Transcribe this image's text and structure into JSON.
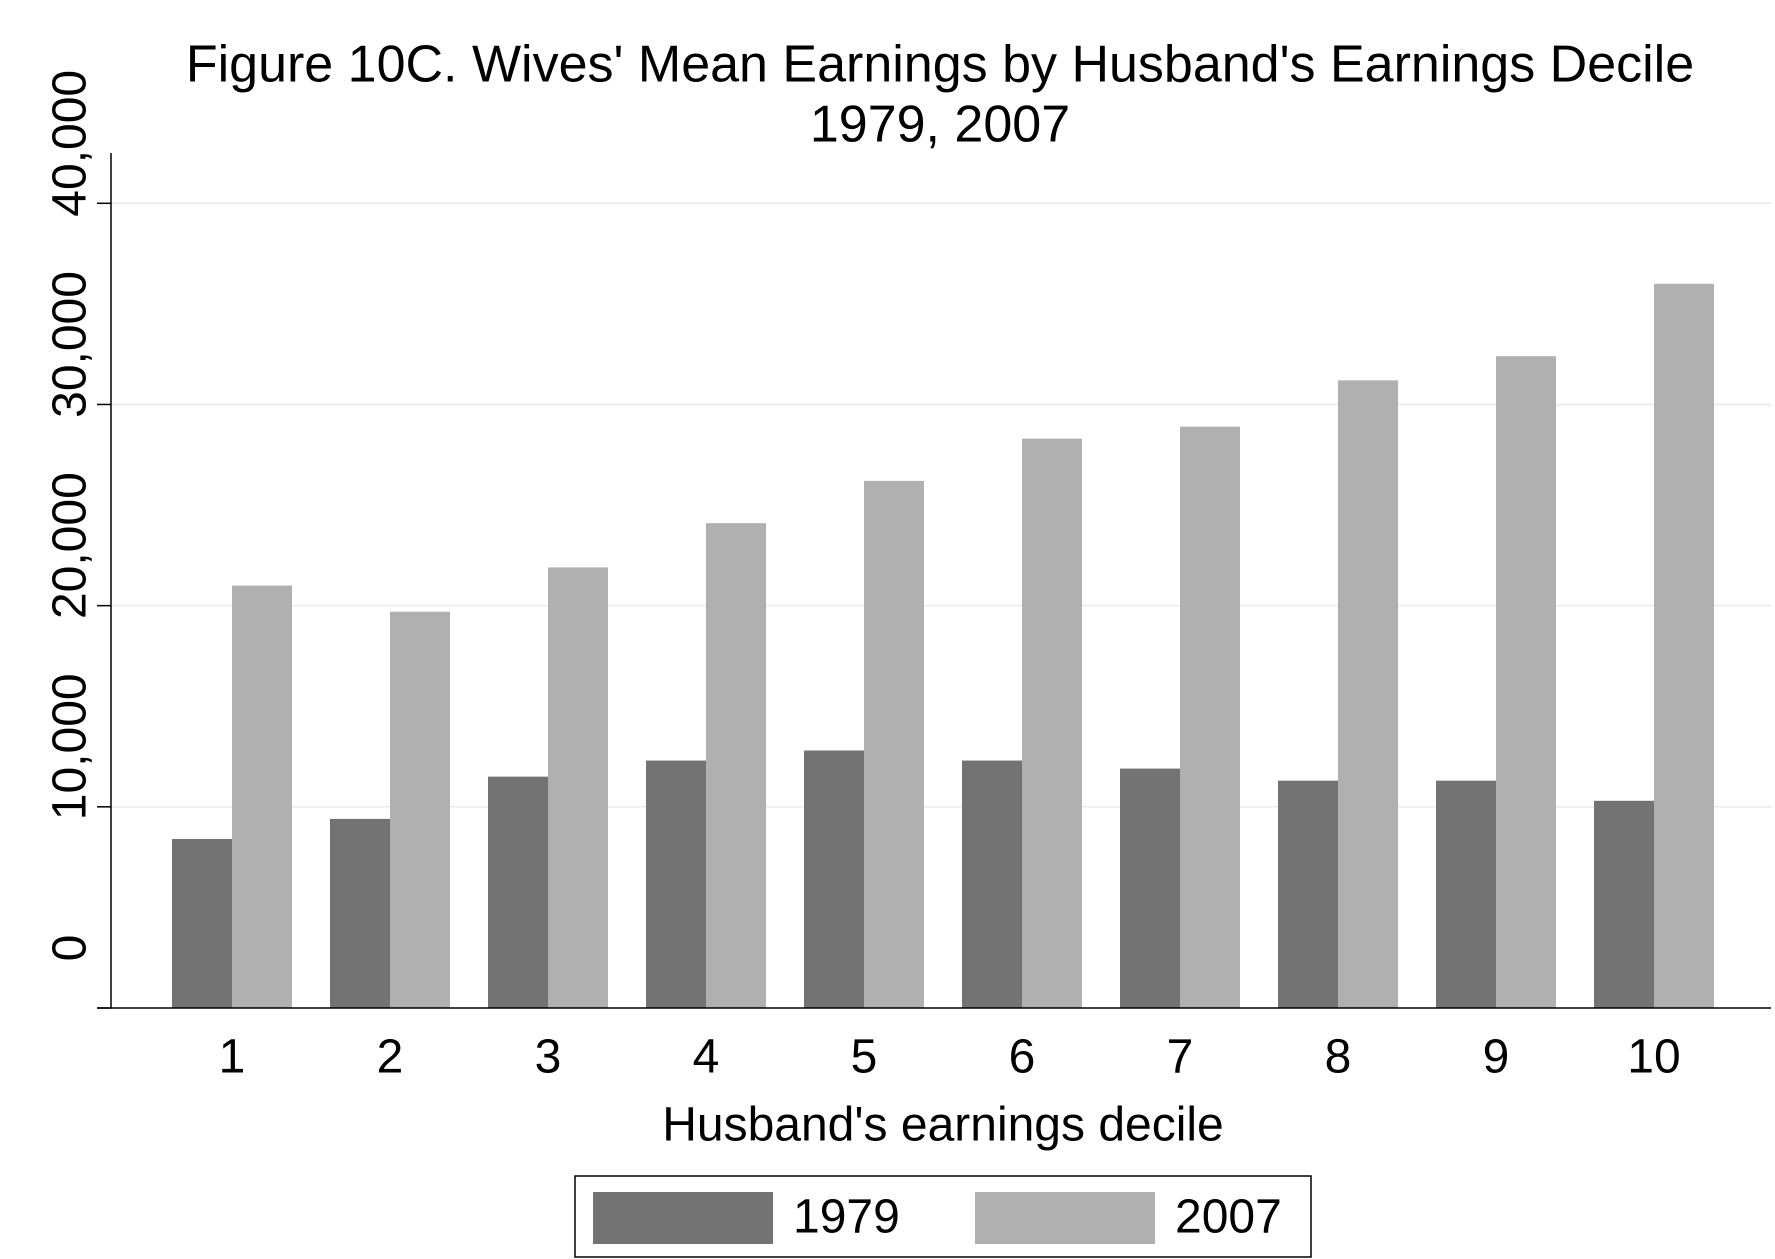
{
  "chart_data": {
    "type": "bar",
    "title": "Figure 10C. Wives' Mean Earnings by Husband's Earnings Decile",
    "subtitle": "1979, 2007",
    "x_label": "Husband's earnings decile",
    "categories": [
      "1",
      "2",
      "3",
      "4",
      "5",
      "6",
      "7",
      "8",
      "9",
      "10"
    ],
    "series": [
      {
        "name": "1979",
        "color": "#737373",
        "values": [
          8400,
          9400,
          11500,
          12300,
          12800,
          12300,
          11900,
          11300,
          11300,
          10300
        ]
      },
      {
        "name": "2007",
        "color": "#b0b0b0",
        "values": [
          21000,
          19700,
          21900,
          24100,
          26200,
          28300,
          28900,
          31200,
          32400,
          36000
        ]
      }
    ],
    "ylim": [
      0,
      42500
    ],
    "yticks": [
      0,
      {
        "value": 10000,
        "label": "10,000"
      },
      {
        "value": 20000,
        "label": "20,000"
      },
      {
        "value": 30000,
        "label": "30,000"
      },
      {
        "value": 40000,
        "label": "40,000"
      }
    ],
    "grid": true,
    "legend": "bottom"
  }
}
